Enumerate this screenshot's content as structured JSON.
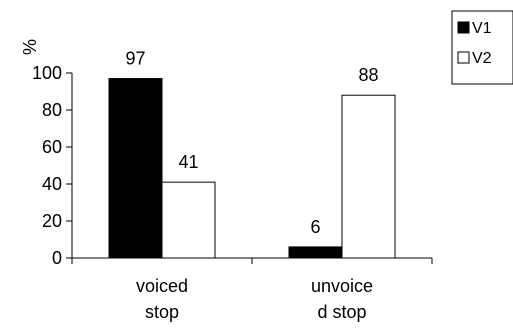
{
  "chart_data": {
    "type": "bar",
    "title": "",
    "ylabel": "%",
    "xlabel": "",
    "ylim": [
      0,
      100
    ],
    "yticks": [
      0,
      20,
      40,
      60,
      80,
      100
    ],
    "categories": [
      "voiced stop",
      "unvoiced stop"
    ],
    "category_label_lines": [
      [
        "voiced",
        "stop"
      ],
      [
        "unvoice",
        "d stop"
      ]
    ],
    "series": [
      {
        "name": "V1",
        "values": [
          97,
          6
        ],
        "color": "#000000"
      },
      {
        "name": "V2",
        "values": [
          41,
          88
        ],
        "color": "#ffffff"
      }
    ],
    "data_labels": true,
    "grid": false,
    "legend": "top-right"
  }
}
